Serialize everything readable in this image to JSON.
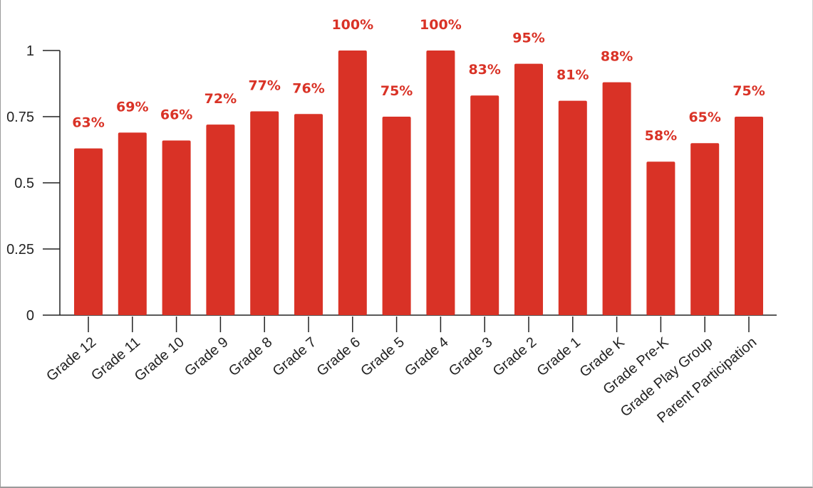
{
  "chart_data": {
    "type": "bar",
    "title": "",
    "xlabel": "",
    "ylabel": "",
    "ylim": [
      0,
      1
    ],
    "yticks": [
      0,
      0.25,
      0.5,
      0.75,
      1
    ],
    "ytick_labels": [
      "0",
      "0.25",
      "0.5",
      "0.75",
      "1"
    ],
    "categories": [
      "Grade 12",
      "Grade 11",
      "Grade 10",
      "Grade 9",
      "Grade 8",
      "Grade 7",
      "Grade 6",
      "Grade 5",
      "Grade 4",
      "Grade 3",
      "Grade 2",
      "Grade 1",
      "Grade K",
      "Grade Pre-K",
      "Grade Play Group",
      "Parent Participation"
    ],
    "values": [
      0.63,
      0.69,
      0.66,
      0.72,
      0.77,
      0.76,
      1.0,
      0.75,
      1.0,
      0.83,
      0.95,
      0.81,
      0.88,
      0.58,
      0.65,
      0.75
    ],
    "data_labels": [
      "63%",
      "69%",
      "66%",
      "72%",
      "77%",
      "76%",
      "100%",
      "75%",
      "100%",
      "83%",
      "95%",
      "81%",
      "88%",
      "58%",
      "65%",
      "75%"
    ],
    "grid": false,
    "legend": "none",
    "bar_color": "#d93226",
    "label_color": "#d93226"
  }
}
